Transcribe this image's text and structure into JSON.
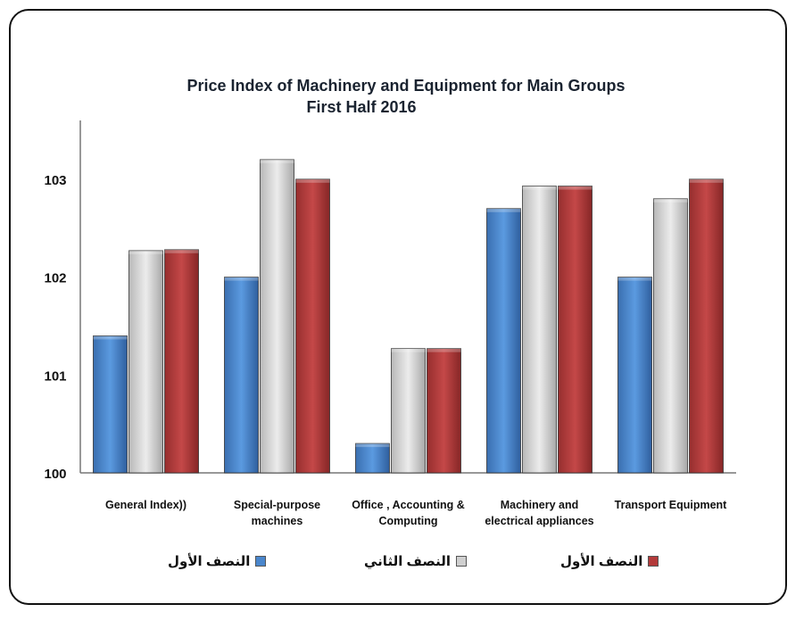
{
  "chart_data": {
    "type": "bar",
    "title": "Price Index of Machinery and Equipment  for Main Groups",
    "subtitle": "First Half 2016",
    "categories": [
      [
        "General Index))"
      ],
      [
        "Special-purpose",
        "machines"
      ],
      [
        "Office , Accounting &",
        "Computing"
      ],
      [
        "Machinery and",
        "electrical appliances"
      ],
      [
        "Transport Equipment"
      ]
    ],
    "series": [
      {
        "name": "النصف الأول",
        "color": "#4a86cc",
        "values": [
          101.4,
          102.0,
          100.3,
          102.7,
          102.0
        ]
      },
      {
        "name": "النصف الثاني",
        "color": "#cfcfcf",
        "values": [
          102.27,
          103.2,
          101.27,
          102.93,
          102.8
        ]
      },
      {
        "name": "النصف الأول",
        "color": "#b33a3a",
        "values": [
          102.28,
          103.0,
          101.27,
          102.93,
          103.0
        ]
      }
    ],
    "ylim": [
      100,
      103.6
    ],
    "yticks": [
      "100",
      "101",
      "102",
      "103"
    ],
    "xlabel": "",
    "ylabel": "",
    "legend_position": "bottom"
  }
}
